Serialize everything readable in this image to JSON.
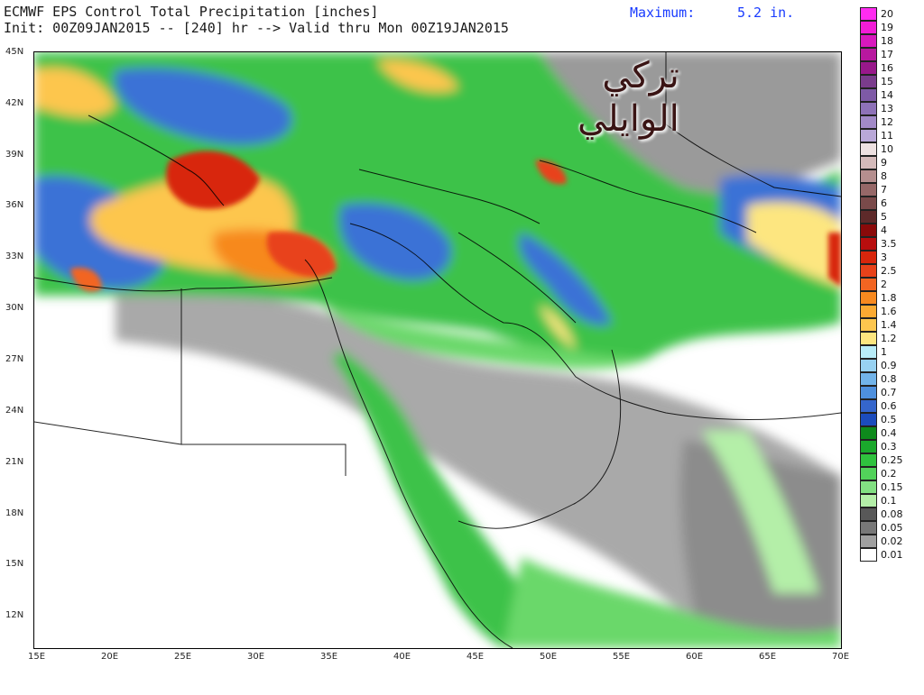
{
  "header": {
    "line1": "ECMWF EPS Control Total Precipitation [inches]",
    "line2": "Init: 00Z09JAN2015 -- [240] hr --> Valid thru Mon 00Z19JAN2015",
    "max_label": "Maximum:",
    "max_value": "5.2 in."
  },
  "watermark": {
    "line1": "تركي",
    "line2": "الوايلي"
  },
  "axes": {
    "lat_labels": [
      "45N",
      "42N",
      "39N",
      "36N",
      "33N",
      "30N",
      "27N",
      "24N",
      "21N",
      "18N",
      "15N",
      "12N"
    ],
    "lon_labels": [
      "15E",
      "20E",
      "25E",
      "30E",
      "35E",
      "40E",
      "45E",
      "50E",
      "55E",
      "60E",
      "65E",
      "70E"
    ]
  },
  "legend": [
    {
      "label": "20",
      "color": "#ff2cf0"
    },
    {
      "label": "19",
      "color": "#f21cd6"
    },
    {
      "label": "18",
      "color": "#d818bd"
    },
    {
      "label": "17",
      "color": "#b8189f"
    },
    {
      "label": "16",
      "color": "#98188a"
    },
    {
      "label": "15",
      "color": "#7a3c8c"
    },
    {
      "label": "14",
      "color": "#7e5aa6"
    },
    {
      "label": "13",
      "color": "#8e72b8"
    },
    {
      "label": "12",
      "color": "#a28ac8"
    },
    {
      "label": "11",
      "color": "#b9a8d8"
    },
    {
      "label": "10",
      "color": "#ede1e1"
    },
    {
      "label": "9",
      "color": "#d4baba"
    },
    {
      "label": "8",
      "color": "#b58f8f"
    },
    {
      "label": "7",
      "color": "#966868"
    },
    {
      "label": "6",
      "color": "#7a4a4a"
    },
    {
      "label": "5",
      "color": "#5e2a2a"
    },
    {
      "label": "4",
      "color": "#8a0a0a"
    },
    {
      "label": "3.5",
      "color": "#b80e0e"
    },
    {
      "label": "3",
      "color": "#d8260c"
    },
    {
      "label": "2.5",
      "color": "#e8421a"
    },
    {
      "label": "2",
      "color": "#f26522"
    },
    {
      "label": "1.8",
      "color": "#f7891f"
    },
    {
      "label": "1.6",
      "color": "#fbaa32"
    },
    {
      "label": "1.4",
      "color": "#fdc64e"
    },
    {
      "label": "1.2",
      "color": "#fde680"
    },
    {
      "label": "1",
      "color": "#b8ecf8"
    },
    {
      "label": "0.9",
      "color": "#98d2f2"
    },
    {
      "label": "0.8",
      "color": "#72b4ea"
    },
    {
      "label": "0.7",
      "color": "#4e90de"
    },
    {
      "label": "0.6",
      "color": "#3566cc"
    },
    {
      "label": "0.5",
      "color": "#1c4cbc"
    },
    {
      "label": "0.4",
      "color": "#0e8a1c"
    },
    {
      "label": "0.3",
      "color": "#1aa82c"
    },
    {
      "label": "0.25",
      "color": "#2fc23e"
    },
    {
      "label": "0.2",
      "color": "#52d25a"
    },
    {
      "label": "0.15",
      "color": "#82e082"
    },
    {
      "label": "0.1",
      "color": "#b4efa8"
    },
    {
      "label": "0.08",
      "color": "#585858"
    },
    {
      "label": "0.05",
      "color": "#787878"
    },
    {
      "label": "0.02",
      "color": "#a0a0a0"
    },
    {
      "label": "0.01",
      "color": "#ffffff"
    }
  ]
}
